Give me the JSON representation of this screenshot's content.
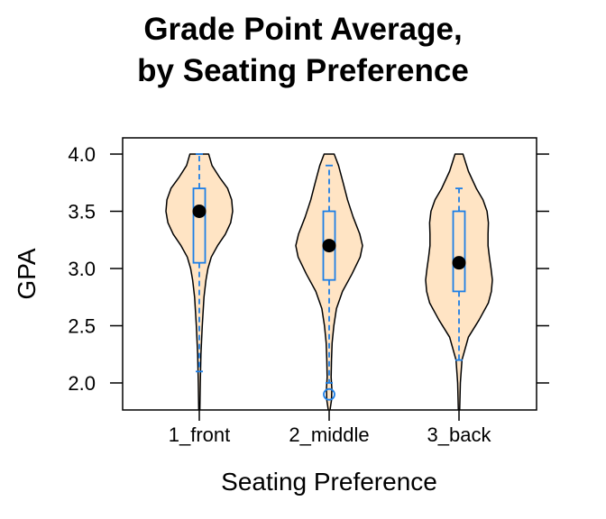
{
  "chart_data": {
    "type": "violin",
    "title": [
      "Grade Point Average,",
      "by Seating Preference"
    ],
    "xlabel": "Seating Preference",
    "ylabel": "GPA",
    "ylim": [
      1.75,
      4.05
    ],
    "yticks": [
      2.0,
      2.5,
      3.0,
      3.5,
      4.0
    ],
    "ytick_labels": [
      "2.0",
      "2.5",
      "3.0",
      "3.5",
      "4.0"
    ],
    "categories": [
      "1_front",
      "2_middle",
      "3_back"
    ],
    "colors": {
      "violin_fill": "#ffe4c4",
      "box": "#1e7fe6",
      "median": "#000000"
    },
    "groups": [
      {
        "name": "1_front",
        "box": {
          "q1": 3.05,
          "median": 3.5,
          "q3": 3.7,
          "whisker_low": 2.1,
          "whisker_high": 4.0
        },
        "outliers": [],
        "density": [
          [
            1.75,
            0.015
          ],
          [
            2.0,
            0.03
          ],
          [
            2.25,
            0.05
          ],
          [
            2.5,
            0.09
          ],
          [
            2.75,
            0.14
          ],
          [
            2.9,
            0.2
          ],
          [
            3.0,
            0.26
          ],
          [
            3.1,
            0.36
          ],
          [
            3.2,
            0.55
          ],
          [
            3.3,
            0.78
          ],
          [
            3.4,
            0.94
          ],
          [
            3.5,
            1.0
          ],
          [
            3.6,
            0.97
          ],
          [
            3.7,
            0.85
          ],
          [
            3.8,
            0.6
          ],
          [
            3.9,
            0.38
          ],
          [
            4.0,
            0.28
          ]
        ]
      },
      {
        "name": "2_middle",
        "box": {
          "q1": 2.9,
          "median": 3.2,
          "q3": 3.5,
          "whisker_low": 2.0,
          "whisker_high": 3.9
        },
        "outliers": [
          1.9
        ],
        "density": [
          [
            1.75,
            0.02
          ],
          [
            1.85,
            0.07
          ],
          [
            1.95,
            0.08
          ],
          [
            2.05,
            0.06
          ],
          [
            2.2,
            0.07
          ],
          [
            2.35,
            0.09
          ],
          [
            2.5,
            0.14
          ],
          [
            2.65,
            0.22
          ],
          [
            2.8,
            0.4
          ],
          [
            2.95,
            0.68
          ],
          [
            3.1,
            0.93
          ],
          [
            3.2,
            1.0
          ],
          [
            3.3,
            0.92
          ],
          [
            3.45,
            0.72
          ],
          [
            3.6,
            0.55
          ],
          [
            3.75,
            0.42
          ],
          [
            3.9,
            0.28
          ],
          [
            4.0,
            0.15
          ]
        ]
      },
      {
        "name": "3_back",
        "box": {
          "q1": 2.8,
          "median": 3.05,
          "q3": 3.5,
          "whisker_low": 2.2,
          "whisker_high": 3.7
        },
        "outliers": [],
        "density": [
          [
            1.75,
            0.02
          ],
          [
            2.0,
            0.04
          ],
          [
            2.2,
            0.09
          ],
          [
            2.4,
            0.28
          ],
          [
            2.55,
            0.6
          ],
          [
            2.7,
            0.88
          ],
          [
            2.8,
            0.97
          ],
          [
            2.9,
            1.0
          ],
          [
            3.0,
            0.96
          ],
          [
            3.1,
            0.91
          ],
          [
            3.2,
            0.87
          ],
          [
            3.3,
            0.87
          ],
          [
            3.4,
            0.88
          ],
          [
            3.5,
            0.84
          ],
          [
            3.6,
            0.72
          ],
          [
            3.7,
            0.52
          ],
          [
            3.85,
            0.28
          ],
          [
            4.0,
            0.12
          ]
        ]
      }
    ]
  }
}
